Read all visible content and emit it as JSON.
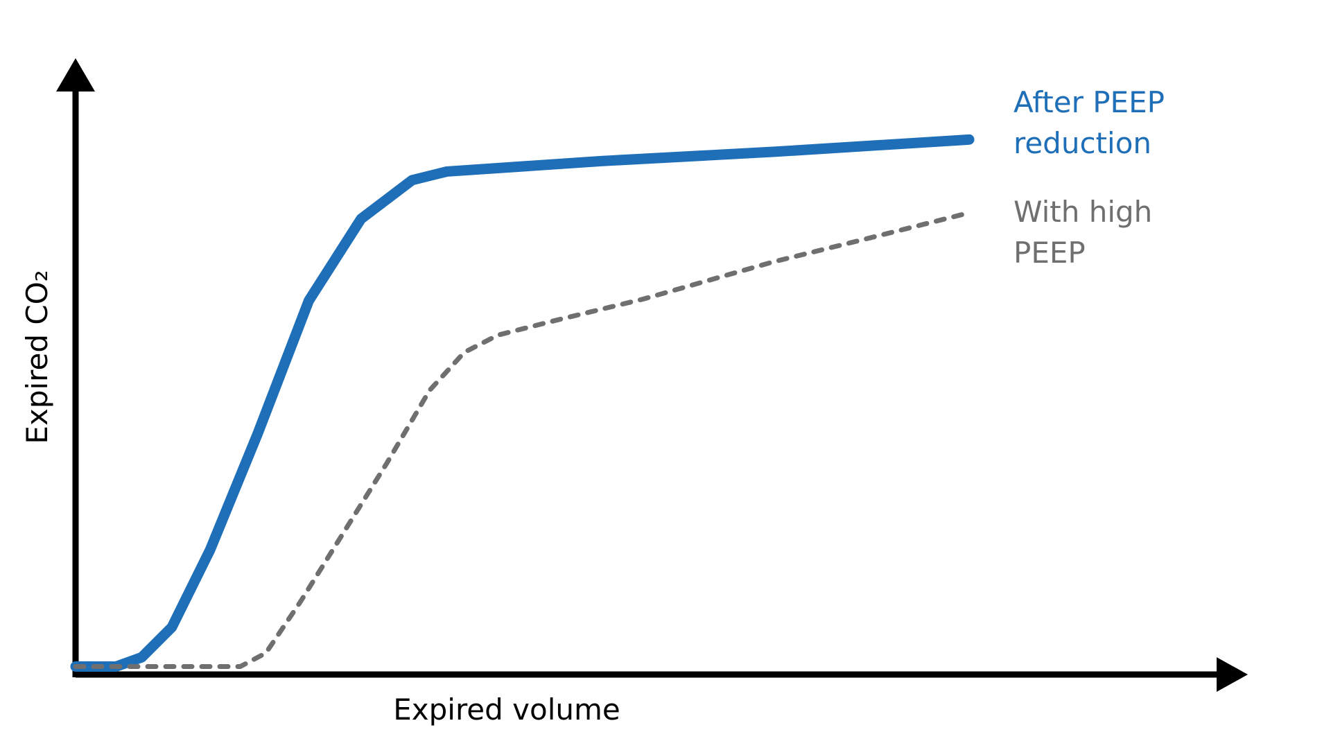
{
  "chart_data": {
    "type": "line",
    "xlabel": "Expired volume",
    "ylabel": "Expired CO₂",
    "xlim": [
      0,
      100
    ],
    "ylim": [
      0,
      100
    ],
    "series": [
      {
        "name": "After PEEP reduction",
        "color": "#1f6fb8",
        "style": "solid",
        "x": [
          0,
          3.5,
          5.7,
          8.3,
          11.6,
          15.7,
          20.1,
          24.6,
          29.0,
          32.0,
          45.3,
          60.1,
          77.0
        ],
        "values": [
          1.3,
          1.3,
          2.8,
          7.7,
          20.3,
          39.2,
          60.8,
          74.1,
          80.4,
          81.8,
          83.5,
          85.0,
          87.0
        ]
      },
      {
        "name": "With high PEEP",
        "color": "#6f6f6f",
        "style": "dashed",
        "x": [
          0,
          14.2,
          16.4,
          19.4,
          23.1,
          26.8,
          30.5,
          33.5,
          36.4,
          41.6,
          49.0,
          60.1,
          67.6,
          76.4
        ],
        "values": [
          1.3,
          1.3,
          3.5,
          11.9,
          23.1,
          34.3,
          46.2,
          52.4,
          55.2,
          57.7,
          61.1,
          67.1,
          70.6,
          74.8
        ]
      }
    ]
  }
}
